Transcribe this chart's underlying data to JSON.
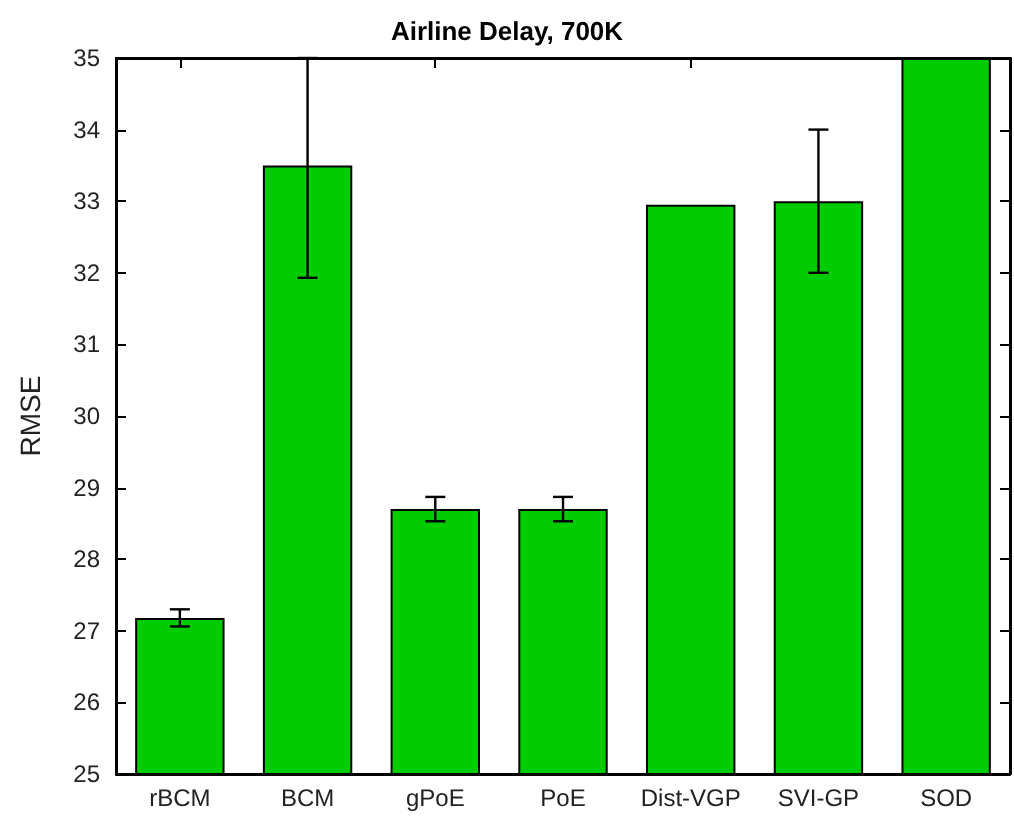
{
  "chart_data": {
    "type": "bar",
    "title": "Airline Delay, 700K",
    "ylabel": "RMSE",
    "categories": [
      "rBCM",
      "BCM",
      "gPoE",
      "PoE",
      "Dist-VGP",
      "SVI-GP",
      "SOD"
    ],
    "values": [
      27.18,
      33.5,
      28.7,
      28.7,
      32.95,
      33.0,
      35
    ],
    "errors": [
      0.12,
      [
        31.93,
        35
      ],
      0.17,
      0.17,
      null,
      1.0,
      null
    ],
    "color": "#00cc00",
    "ylim": [
      25,
      35
    ],
    "yticks": [
      25,
      26,
      27,
      28,
      29,
      30,
      31,
      32,
      33,
      34,
      35
    ],
    "grid": false
  }
}
